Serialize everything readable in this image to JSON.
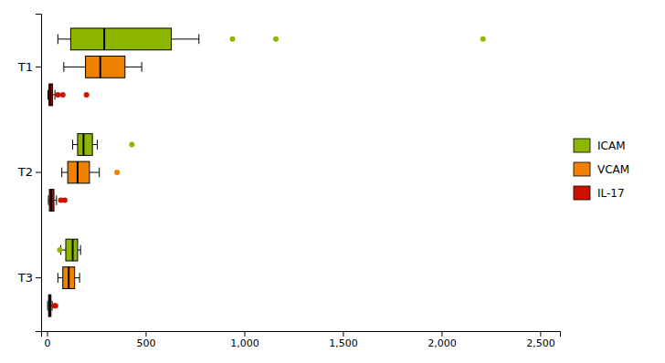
{
  "chart_data": {
    "type": "box",
    "orientation": "horizontal",
    "categories": [
      "T1",
      "T2",
      "T3"
    ],
    "series": [
      {
        "name": "ICAM",
        "color": "#8db600",
        "values": [
          {
            "q1": 120,
            "median": 290,
            "q3": 630,
            "whisker_low": 55,
            "whisker_high": 770,
            "fliers": [
              940,
              1160,
              2210
            ]
          },
          {
            "q1": 155,
            "median": 185,
            "q3": 230,
            "whisker_low": 130,
            "whisker_high": 255,
            "fliers": [
              430
            ]
          },
          {
            "q1": 95,
            "median": 130,
            "q3": 155,
            "whisker_low": 70,
            "whisker_high": 170,
            "fliers": [
              65
            ]
          }
        ]
      },
      {
        "name": "VCAM",
        "color": "#f08000",
        "values": [
          {
            "q1": 195,
            "median": 270,
            "q3": 395,
            "whisker_low": 85,
            "whisker_high": 480,
            "fliers": []
          },
          {
            "q1": 105,
            "median": 155,
            "q3": 215,
            "whisker_low": 75,
            "whisker_high": 265,
            "fliers": [
              355
            ]
          },
          {
            "q1": 80,
            "median": 110,
            "q3": 140,
            "whisker_low": 55,
            "whisker_high": 165,
            "fliers": []
          }
        ]
      },
      {
        "name": "IL-17",
        "color": "#cc1100",
        "values": [
          {
            "q1": 10,
            "median": 18,
            "q3": 28,
            "whisker_low": 5,
            "whisker_high": 40,
            "fliers": [
              55,
              80,
              200
            ]
          },
          {
            "q1": 12,
            "median": 22,
            "q3": 35,
            "whisker_low": 7,
            "whisker_high": 48,
            "fliers": [
              70,
              90
            ]
          },
          {
            "q1": 8,
            "median": 14,
            "q3": 20,
            "whisker_low": 3,
            "whisker_high": 26,
            "fliers": [
              38,
              43
            ]
          }
        ]
      }
    ],
    "xlim": [
      -30,
      2600
    ],
    "xticks": [
      0,
      500,
      {
        "value": 1000,
        "label": "1,000"
      },
      {
        "value": 1500,
        "label": "1,500"
      },
      {
        "value": 2000,
        "label": "2,000"
      },
      {
        "value": 2500,
        "label": "2,500"
      }
    ],
    "grid": false,
    "legend": "right"
  }
}
